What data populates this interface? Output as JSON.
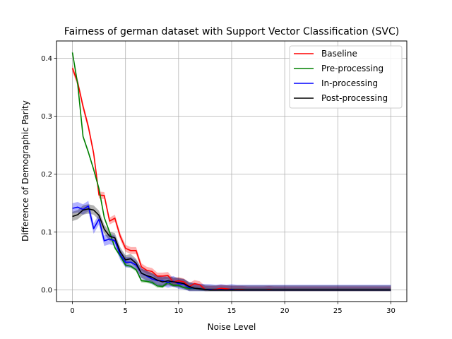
{
  "chart_data": {
    "type": "line",
    "title": "Fairness of german dataset with Support Vector Classification (SVC)",
    "xlabel": "Noise Level",
    "ylabel": "Difference of Demographic Parity",
    "xlim": [
      -1.5,
      31.5
    ],
    "ylim": [
      -0.02,
      0.43
    ],
    "xticks": [
      0,
      5,
      10,
      15,
      20,
      25,
      30
    ],
    "xtick_labels": [
      "0",
      "5",
      "10",
      "15",
      "20",
      "25",
      "30"
    ],
    "yticks": [
      0.0,
      0.1,
      0.2,
      0.3,
      0.4
    ],
    "ytick_labels": [
      "0.0",
      "0.1",
      "0.2",
      "0.3",
      "0.4"
    ],
    "grid": true,
    "legend_position": "top-right",
    "x": [
      0,
      0.5,
      1,
      1.5,
      2,
      2.5,
      3,
      3.5,
      4,
      4.5,
      5,
      5.5,
      6,
      6.5,
      7,
      7.5,
      8,
      8.5,
      9,
      9.5,
      10,
      10.5,
      11,
      11.5,
      12,
      12.5,
      13,
      13.5,
      14,
      14.5,
      15,
      15.5,
      16,
      16.5,
      17,
      17.5,
      18,
      18.5,
      19,
      19.5,
      20,
      20.5,
      21,
      21.5,
      22,
      22.5,
      23,
      23.5,
      24,
      24.5,
      25,
      25.5,
      26,
      26.5,
      27,
      27.5,
      28,
      28.5,
      29,
      29.5,
      30
    ],
    "series": [
      {
        "name": "Baseline",
        "color": "#ff0000",
        "band": 0.006,
        "values": [
          0.383,
          0.358,
          0.317,
          0.282,
          0.236,
          0.164,
          0.163,
          0.119,
          0.124,
          0.093,
          0.072,
          0.068,
          0.068,
          0.04,
          0.034,
          0.032,
          0.024,
          0.024,
          0.025,
          0.014,
          0.016,
          0.014,
          0.006,
          0.011,
          0.009,
          0.001,
          0.001,
          0.001,
          0.003,
          0.002,
          0.001,
          0.001,
          0.001,
          0.0,
          0.0,
          0.0,
          0.0,
          0.001,
          0.0,
          0.0,
          0.0,
          0.0,
          0.0,
          0.0,
          0.0,
          0.0,
          0.0,
          0.0,
          0.0,
          0.0,
          0.0,
          0.0,
          0.0,
          0.0,
          0.0,
          0.0,
          0.0,
          0.0,
          0.0,
          0.0,
          0.0
        ]
      },
      {
        "name": "Pre-processing",
        "color": "#008000",
        "band": 0.003,
        "values": [
          0.41,
          0.355,
          0.265,
          0.238,
          0.208,
          0.175,
          0.125,
          0.1,
          0.073,
          0.059,
          0.043,
          0.041,
          0.035,
          0.016,
          0.015,
          0.013,
          0.007,
          0.006,
          0.013,
          0.008,
          0.008,
          0.004,
          0.003,
          0.003,
          0.002,
          0.001,
          0.0,
          0.0,
          0.0,
          0.0,
          0.0,
          0.0,
          0.0,
          0.0,
          0.0,
          0.0,
          0.0,
          0.0,
          0.0,
          0.0,
          0.0,
          0.0,
          0.0,
          0.0,
          0.0,
          0.0,
          0.0,
          0.0,
          0.0,
          0.0,
          0.0,
          0.0,
          0.0,
          0.0,
          0.0,
          0.0,
          0.0,
          0.0,
          0.0,
          0.0,
          0.0
        ]
      },
      {
        "name": "In-processing",
        "color": "#0000ff",
        "band": 0.009,
        "values": [
          0.141,
          0.143,
          0.139,
          0.145,
          0.106,
          0.122,
          0.085,
          0.088,
          0.085,
          0.061,
          0.048,
          0.048,
          0.043,
          0.029,
          0.024,
          0.019,
          0.016,
          0.016,
          0.013,
          0.015,
          0.011,
          0.01,
          0.004,
          0.003,
          0.002,
          0.001,
          0.001,
          0.0,
          0.001,
          0.0,
          0.001,
          0.0,
          0.0,
          0.0,
          0.0,
          0.0,
          0.0,
          0.0,
          0.0,
          0.0,
          0.0,
          0.0,
          0.0,
          0.0,
          0.0,
          0.0,
          0.0,
          0.0,
          0.0,
          0.0,
          0.0,
          0.0,
          0.0,
          0.0,
          0.0,
          0.0,
          0.0,
          0.0,
          0.0,
          0.0,
          0.0
        ]
      },
      {
        "name": "Post-processing",
        "color": "#000000",
        "band": 0.008,
        "values": [
          0.127,
          0.13,
          0.138,
          0.14,
          0.138,
          0.129,
          0.105,
          0.093,
          0.09,
          0.066,
          0.052,
          0.054,
          0.046,
          0.029,
          0.025,
          0.022,
          0.017,
          0.014,
          0.016,
          0.014,
          0.013,
          0.011,
          0.006,
          0.003,
          0.002,
          0.001,
          0.0,
          0.0,
          0.0,
          0.0,
          0.0,
          0.0,
          0.0,
          0.0,
          0.0,
          0.0,
          0.0,
          0.0,
          0.0,
          0.0,
          0.0,
          0.0,
          0.0,
          0.0,
          0.0,
          0.0,
          0.0,
          0.0,
          0.0,
          0.0,
          0.0,
          0.0,
          0.0,
          0.0,
          0.0,
          0.0,
          0.0,
          0.0,
          0.0,
          0.0,
          0.0
        ]
      }
    ]
  }
}
